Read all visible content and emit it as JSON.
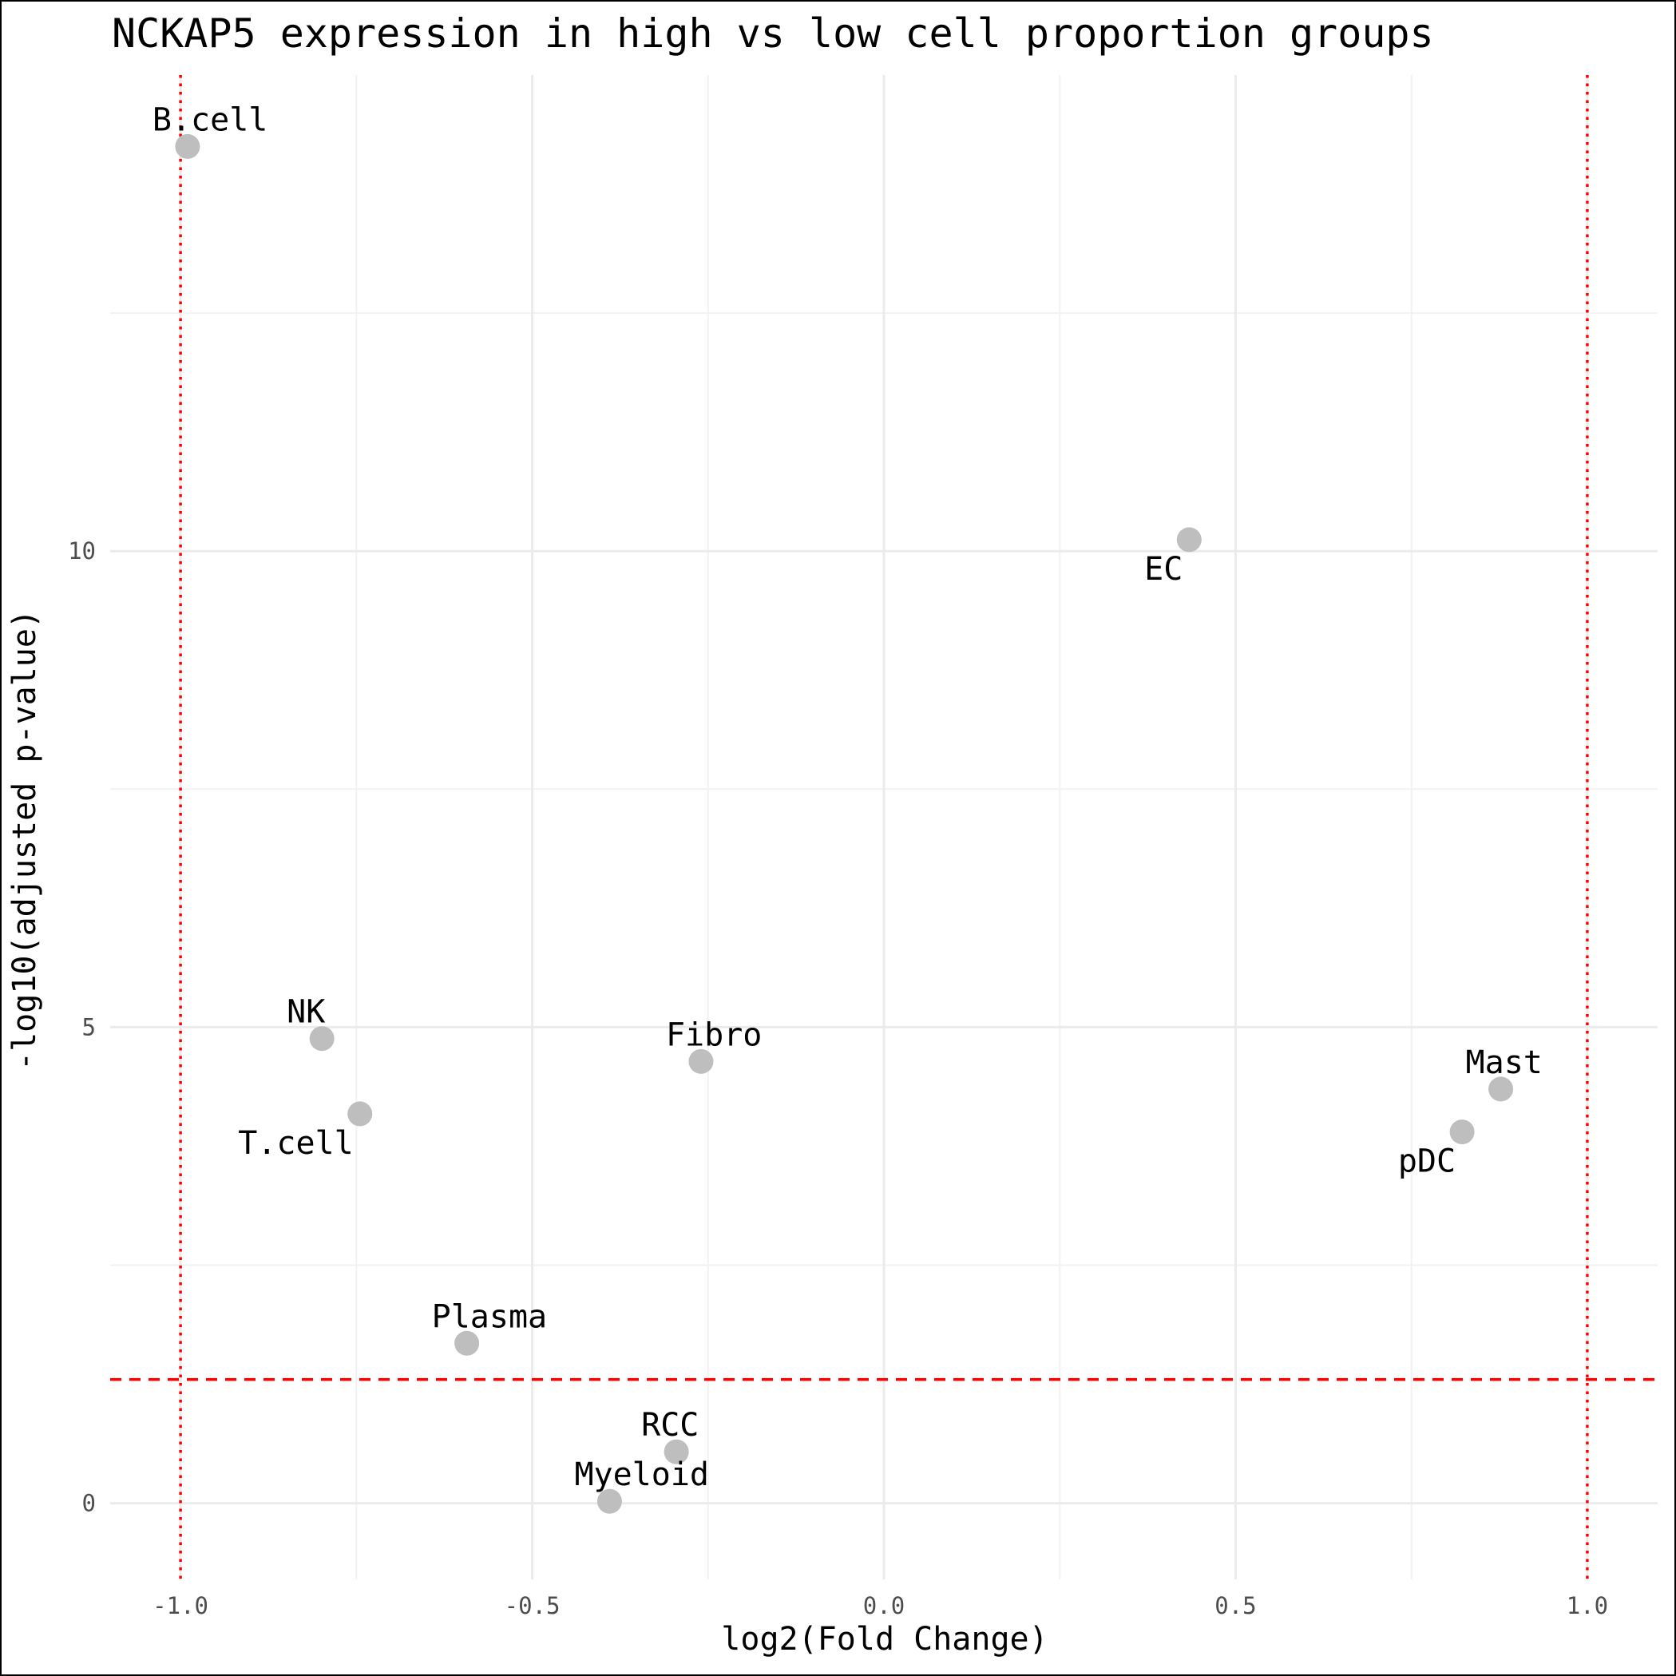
{
  "chart_data": {
    "type": "scatter",
    "title": "NCKAP5 expression in high vs low cell proportion groups",
    "xlabel": "log2(Fold Change)",
    "ylabel": "-log10(adjusted p-value)",
    "xlim": [
      -1.1,
      1.1
    ],
    "ylim": [
      -0.8,
      15.0
    ],
    "x_ticks": [
      -1.0,
      -0.5,
      0.0,
      0.5,
      1.0
    ],
    "x_tick_labels": [
      "-1.0",
      "-0.5",
      "0.0",
      "0.5",
      "1.0"
    ],
    "x_minor_ticks": [
      -0.75,
      -0.25,
      0.25,
      0.75
    ],
    "y_ticks": [
      0,
      5,
      10
    ],
    "y_tick_labels": [
      "0",
      "5",
      "10"
    ],
    "y_minor_ticks": [
      2.5,
      7.5,
      12.5
    ],
    "grid": true,
    "point_color": "#bebebe",
    "threshold_color": "#ff0000",
    "thresholds": {
      "vertical_dotted_x": [
        -1.0,
        1.0
      ],
      "horizontal_dashed_y": 1.3
    },
    "points": [
      {
        "label": "B.cell",
        "x": -0.99,
        "y": 14.25,
        "label_pos": "above-right"
      },
      {
        "label": "EC",
        "x": 0.434,
        "y": 10.12,
        "label_pos": "below-left"
      },
      {
        "label": "NK",
        "x": -0.799,
        "y": 4.88,
        "label_pos": "above-right"
      },
      {
        "label": "T.cell",
        "x": -0.745,
        "y": 4.09,
        "label_pos": "below-left"
      },
      {
        "label": "Fibro",
        "x": -0.26,
        "y": 4.64,
        "label_pos": "above-right"
      },
      {
        "label": "Mast",
        "x": 0.877,
        "y": 4.35,
        "label_pos": "above-right"
      },
      {
        "label": "pDC",
        "x": 0.822,
        "y": 3.9,
        "label_pos": "below-left"
      },
      {
        "label": "Plasma",
        "x": -0.593,
        "y": 1.68,
        "label_pos": "above-right"
      },
      {
        "label": "RCC",
        "x": -0.295,
        "y": 0.54,
        "label_pos": "above-right"
      },
      {
        "label": "Myeloid",
        "x": -0.39,
        "y": 0.02,
        "label_pos": "above-right"
      }
    ]
  }
}
